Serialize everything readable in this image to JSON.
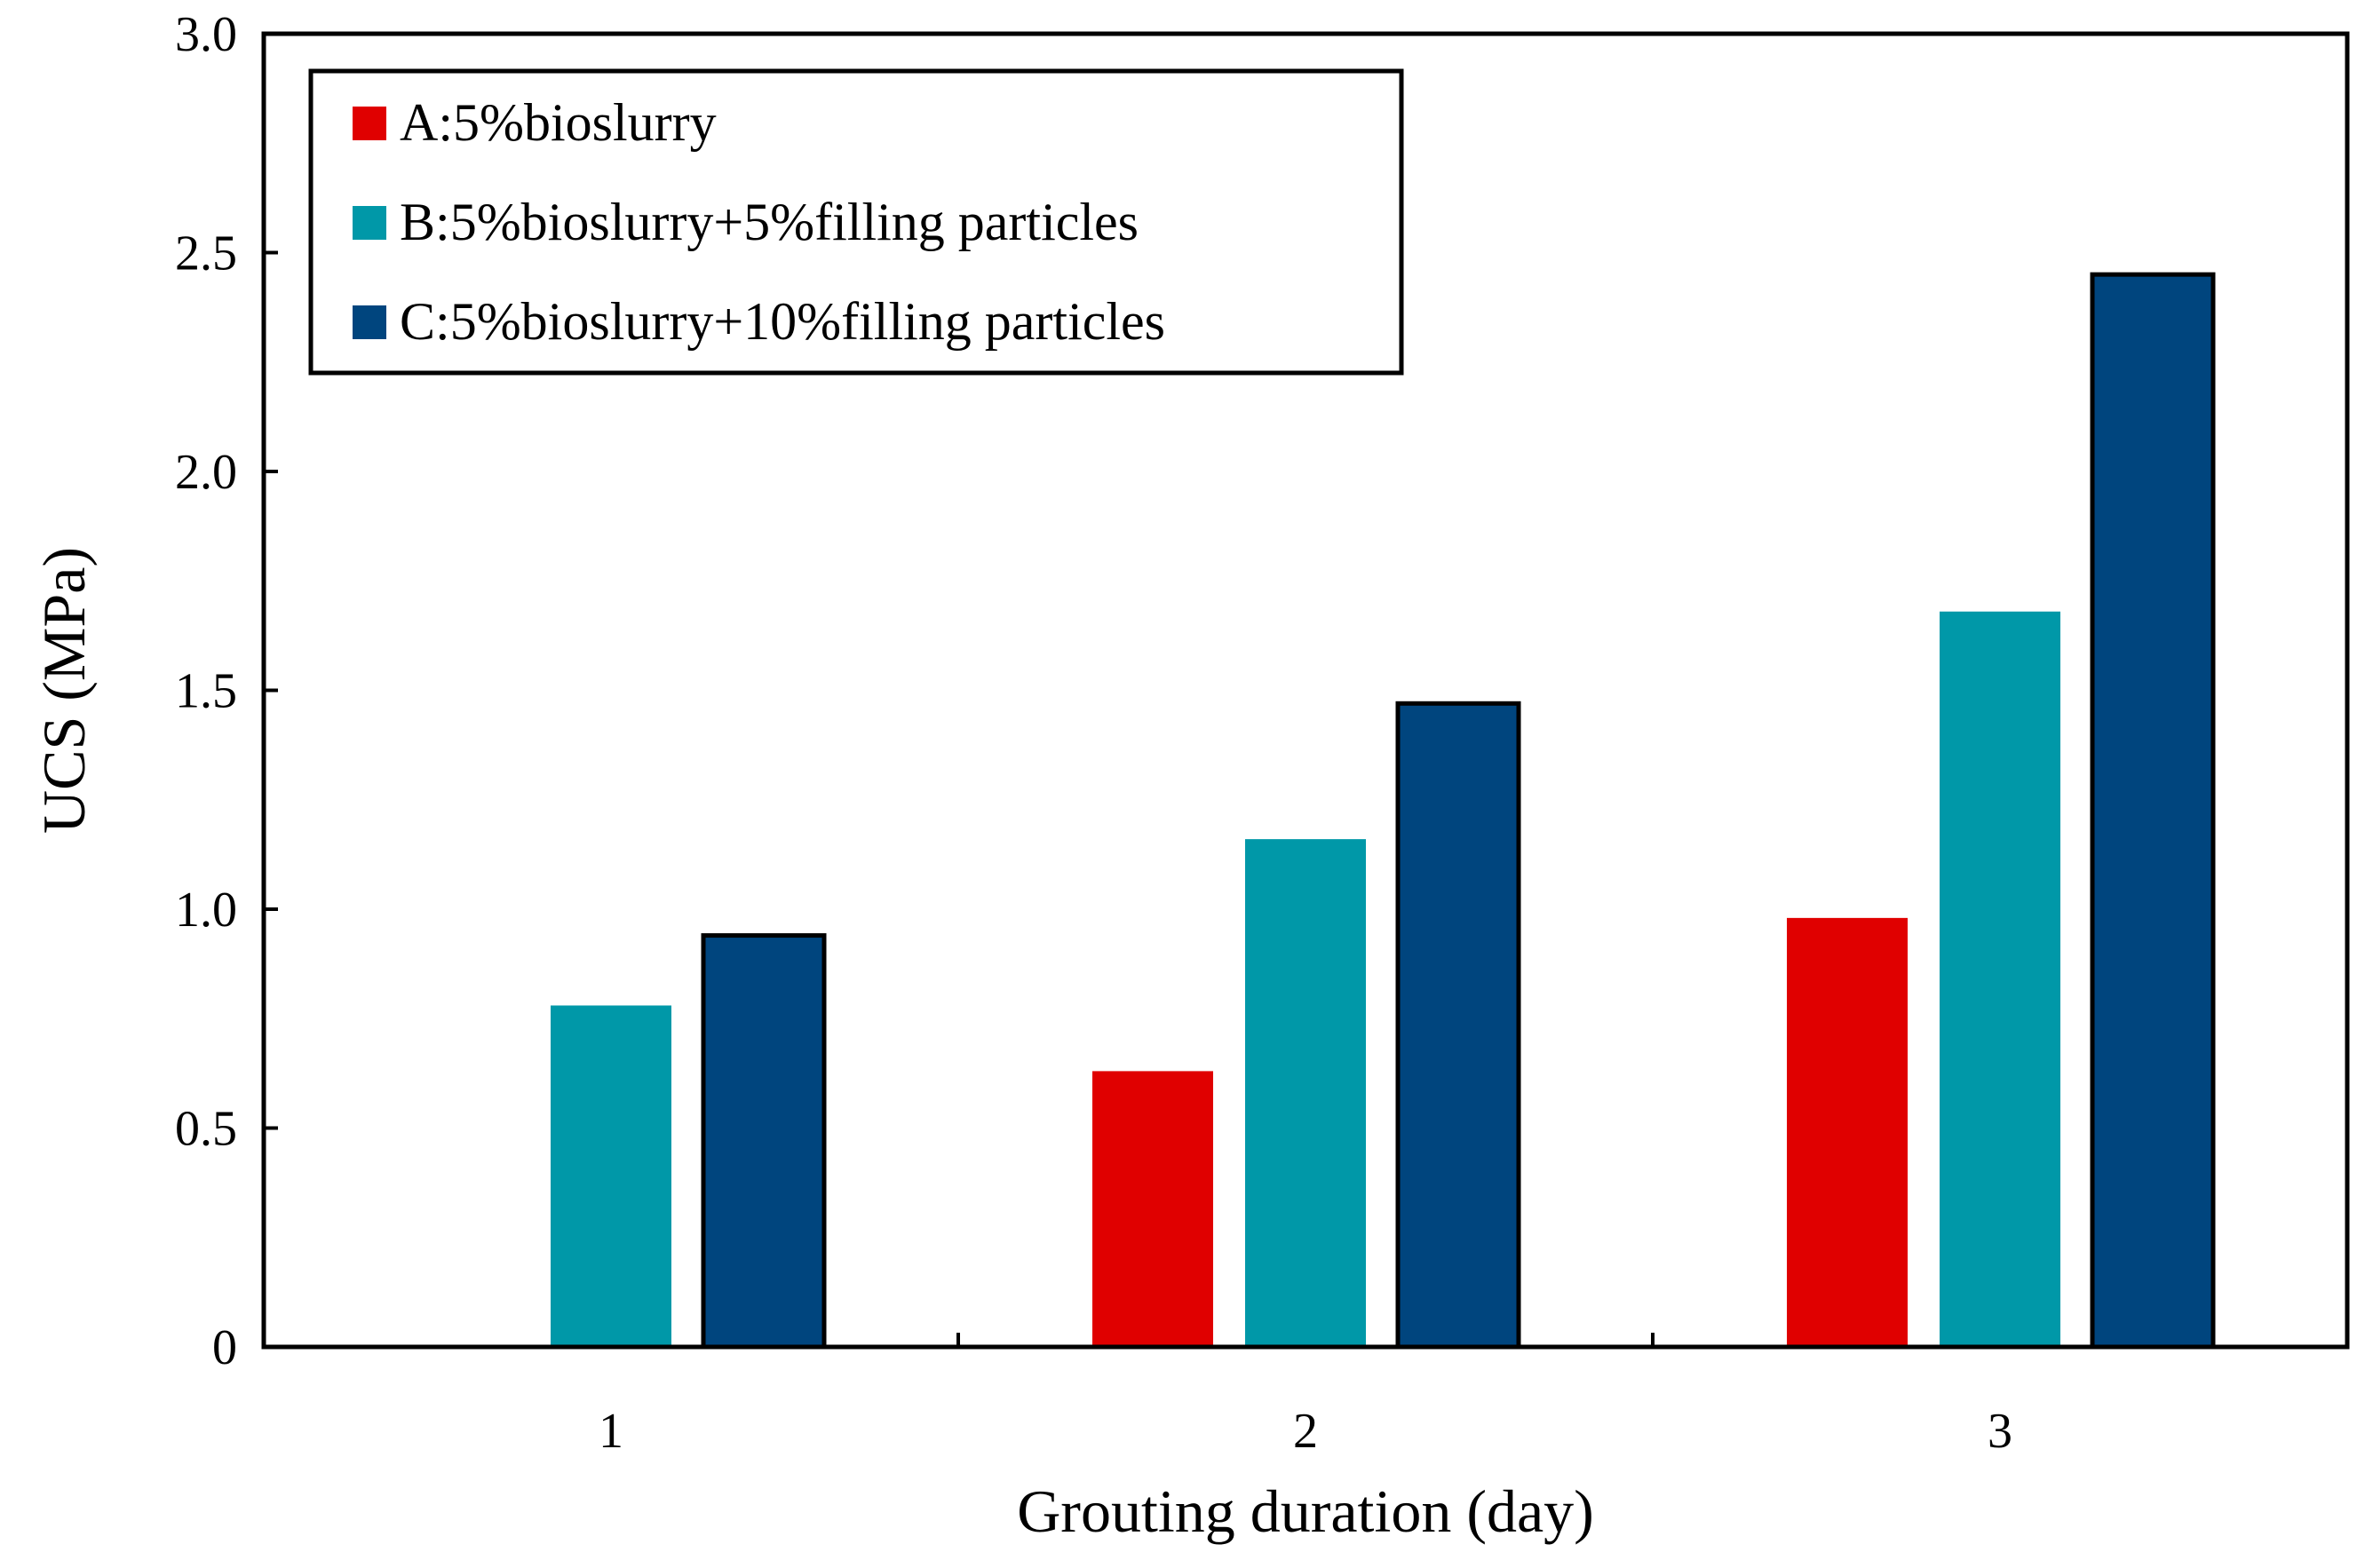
{
  "chart_data": {
    "type": "bar",
    "title": "",
    "xlabel": "Grouting duration (day)",
    "ylabel": "UCS (MPa)",
    "categories": [
      "1",
      "2",
      "3"
    ],
    "ylim": [
      0,
      3.0
    ],
    "yticks": [
      0,
      0.5,
      1.0,
      1.5,
      2.0,
      2.5,
      3.0
    ],
    "ytick_labels": [
      "0",
      "0.5",
      "1.0",
      "1.5",
      "2.0",
      "2.5",
      "3.0"
    ],
    "grid": false,
    "legend_position": "top-left",
    "series": [
      {
        "name": "A:5%bioslurry",
        "color": "#e00000",
        "values": [
          null,
          0.63,
          0.98
        ]
      },
      {
        "name": "B:5%bioslurry+5%filling particles",
        "color": "#0098a8",
        "values": [
          0.78,
          1.16,
          1.68
        ]
      },
      {
        "name": "C:5%bioslurry+10%filling particles",
        "color": "#00457e",
        "values": [
          0.94,
          1.47,
          2.45
        ]
      }
    ]
  }
}
